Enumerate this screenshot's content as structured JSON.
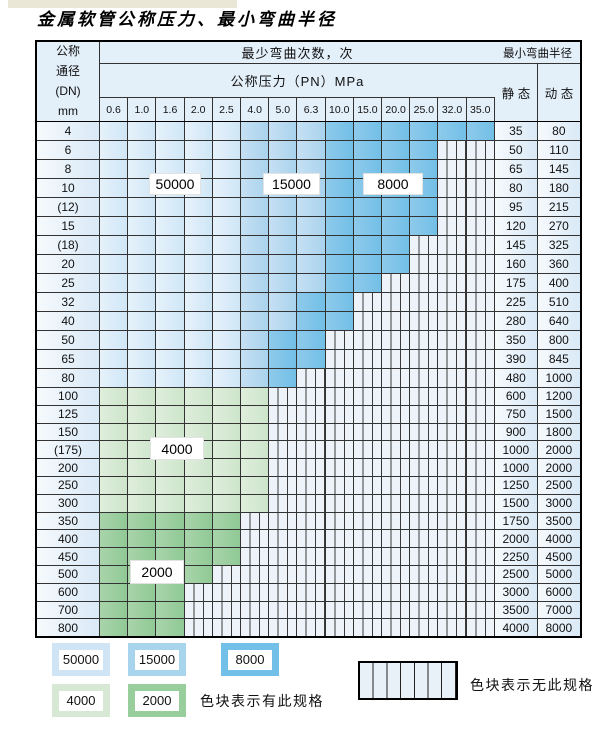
{
  "title": "金属软管公称压力、最小弯曲半径",
  "table": {
    "header": {
      "dn_lines": [
        "公称",
        "通径",
        "(DN)",
        "mm"
      ],
      "bend_cycles": "最少弯曲次数，次",
      "pressure": "公称压力（PN）MPa",
      "min_radius": "最小弯曲半径",
      "static_label": "静 态",
      "dynamic_label": "动 态",
      "pressure_cols": [
        "0.6",
        "1.0",
        "1.6",
        "2.0",
        "2.5",
        "4.0",
        "5.0",
        "6.3",
        "10.0",
        "15.0",
        "20.0",
        "25.0",
        "32.0",
        "35.0"
      ]
    },
    "rows": [
      {
        "dn": "4",
        "static": "35",
        "dynamic": "80",
        "zone": "blue",
        "light_end": 4,
        "med_end": 7,
        "color_end": 13
      },
      {
        "dn": "6",
        "static": "50",
        "dynamic": "110",
        "zone": "blue",
        "light_end": 4,
        "med_end": 7,
        "color_end": 11
      },
      {
        "dn": "8",
        "static": "65",
        "dynamic": "145",
        "zone": "blue",
        "light_end": 4,
        "med_end": 7,
        "color_end": 11
      },
      {
        "dn": "10",
        "static": "80",
        "dynamic": "180",
        "zone": "blue",
        "light_end": 4,
        "med_end": 7,
        "color_end": 11
      },
      {
        "dn": "(12)",
        "static": "95",
        "dynamic": "215",
        "zone": "blue",
        "light_end": 4,
        "med_end": 7,
        "color_end": 11
      },
      {
        "dn": "15",
        "static": "120",
        "dynamic": "270",
        "zone": "blue",
        "light_end": 4,
        "med_end": 7,
        "color_end": 11
      },
      {
        "dn": "(18)",
        "static": "145",
        "dynamic": "325",
        "zone": "blue",
        "light_end": 4,
        "med_end": 7,
        "color_end": 10
      },
      {
        "dn": "20",
        "static": "160",
        "dynamic": "360",
        "zone": "blue",
        "light_end": 4,
        "med_end": 7,
        "color_end": 10
      },
      {
        "dn": "25",
        "static": "175",
        "dynamic": "400",
        "zone": "blue",
        "light_end": 4,
        "med_end": 7,
        "color_end": 9
      },
      {
        "dn": "32",
        "static": "225",
        "dynamic": "510",
        "zone": "blue",
        "light_end": 4,
        "med_end": 6,
        "color_end": 8
      },
      {
        "dn": "40",
        "static": "280",
        "dynamic": "640",
        "zone": "blue",
        "light_end": 4,
        "med_end": 6,
        "color_end": 8
      },
      {
        "dn": "50",
        "static": "350",
        "dynamic": "800",
        "zone": "blue",
        "light_end": 4,
        "med_end": 5,
        "color_end": 7
      },
      {
        "dn": "65",
        "static": "390",
        "dynamic": "845",
        "zone": "blue",
        "light_end": 4,
        "med_end": 5,
        "color_end": 7
      },
      {
        "dn": "80",
        "static": "480",
        "dynamic": "1000",
        "zone": "blue",
        "light_end": 4,
        "med_end": 5,
        "color_end": 6
      },
      {
        "dn": "100",
        "static": "600",
        "dynamic": "1200",
        "zone": "green-light",
        "color_end": 5
      },
      {
        "dn": "125",
        "static": "750",
        "dynamic": "1500",
        "zone": "green-light",
        "color_end": 5
      },
      {
        "dn": "150",
        "static": "900",
        "dynamic": "1800",
        "zone": "green-light",
        "color_end": 5
      },
      {
        "dn": "(175)",
        "static": "1000",
        "dynamic": "2000",
        "zone": "green-light",
        "color_end": 5
      },
      {
        "dn": "200",
        "static": "1000",
        "dynamic": "2000",
        "zone": "green-light",
        "color_end": 5
      },
      {
        "dn": "250",
        "static": "1250",
        "dynamic": "2500",
        "zone": "green-light",
        "color_end": 5
      },
      {
        "dn": "300",
        "static": "1500",
        "dynamic": "3000",
        "zone": "green-light",
        "color_end": 5
      },
      {
        "dn": "350",
        "static": "1750",
        "dynamic": "3500",
        "zone": "green-dark",
        "color_end": 4
      },
      {
        "dn": "400",
        "static": "2000",
        "dynamic": "4000",
        "zone": "green-dark",
        "color_end": 4
      },
      {
        "dn": "450",
        "static": "2250",
        "dynamic": "4500",
        "zone": "green-dark",
        "color_end": 4
      },
      {
        "dn": "500",
        "static": "2500",
        "dynamic": "5000",
        "zone": "green-dark",
        "color_end": 3
      },
      {
        "dn": "600",
        "static": "3000",
        "dynamic": "6000",
        "zone": "green-dark",
        "color_end": 2
      },
      {
        "dn": "700",
        "static": "3500",
        "dynamic": "7000",
        "zone": "green-dark",
        "color_end": 2
      },
      {
        "dn": "800",
        "static": "4000",
        "dynamic": "8000",
        "zone": "green-dark",
        "color_end": 2
      }
    ]
  },
  "overlays": {
    "o50000": "50000",
    "o15000": "15000",
    "o8000": "8000",
    "o4000": "4000",
    "o2000": "2000"
  },
  "legend": {
    "sw50000": "50000",
    "sw15000": "15000",
    "sw8000": "8000",
    "sw4000": "4000",
    "sw2000": "2000",
    "has_spec_text": "色块表示有此规格",
    "no_spec_text": "色块表示无此规格"
  },
  "colors": {
    "blue_50000": "#d5e8f7",
    "blue_15000": "#a9d3ed",
    "blue_8000": "#79c2e8",
    "green_4000": "#d7e9d5",
    "green_2000": "#98cd9c",
    "hatch_bg": "#edf3f9",
    "header_bg": "#e3eff9",
    "grid_line": "#333333"
  }
}
